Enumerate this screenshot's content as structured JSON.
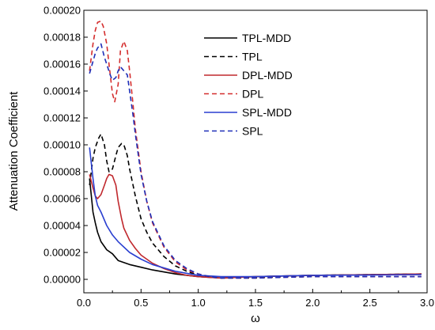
{
  "chart_data": {
    "type": "line",
    "title": "",
    "xlabel": "ω",
    "ylabel": "Attenuation Coefficient",
    "xlim": [
      0.0,
      3.0
    ],
    "ylim": [
      -1e-05,
      0.0002
    ],
    "xticks": [
      "0.0",
      "0.5",
      "1.0",
      "1.5",
      "2.0",
      "2.5",
      "3.0"
    ],
    "yticks": [
      "0.00000",
      "0.00002",
      "0.00004",
      "0.00006",
      "0.00008",
      "0.00010",
      "0.00012",
      "0.00014",
      "0.00016",
      "0.00018",
      "0.00020"
    ],
    "grid": false,
    "legend_position": "top-right",
    "series": [
      {
        "name": "TPL-MDD",
        "color": "#000000",
        "dash": "solid",
        "x": [
          0.05,
          0.08,
          0.1,
          0.12,
          0.15,
          0.2,
          0.25,
          0.3,
          0.4,
          0.5,
          0.6,
          0.8,
          1.0,
          1.2,
          1.5,
          2.0,
          2.5,
          2.95
        ],
        "y": [
          7.5e-05,
          5e-05,
          4.2e-05,
          3.5e-05,
          2.8e-05,
          2.2e-05,
          1.9e-05,
          1.4e-05,
          1.1e-05,
          9e-06,
          7e-06,
          4e-06,
          2e-06,
          1e-06,
          2e-06,
          3e-06,
          3.5e-06,
          4e-06
        ]
      },
      {
        "name": "TPL",
        "color": "#000000",
        "dash": "dashed",
        "x": [
          0.05,
          0.08,
          0.1,
          0.13,
          0.15,
          0.18,
          0.2,
          0.22,
          0.25,
          0.28,
          0.3,
          0.33,
          0.35,
          0.38,
          0.4,
          0.45,
          0.5,
          0.55,
          0.6,
          0.7,
          0.8,
          0.9,
          1.0,
          1.2,
          1.5,
          2.0,
          2.5,
          2.95
        ],
        "y": [
          7e-05,
          9e-05,
          9.8e-05,
          0.000105,
          0.000108,
          0.0001,
          8.8e-05,
          8e-05,
          8.2e-05,
          9.2e-05,
          9.8e-05,
          0.000101,
          0.0001,
          9.2e-05,
          8.2e-05,
          6.2e-05,
          4.5e-05,
          3.5e-05,
          2.7e-05,
          1.7e-05,
          1e-05,
          6e-06,
          3e-06,
          1e-06,
          1e-06,
          3e-06,
          3.5e-06,
          4e-06
        ]
      },
      {
        "name": "DPL-MDD",
        "color": "#c0282d",
        "dash": "solid",
        "x": [
          0.05,
          0.08,
          0.1,
          0.12,
          0.15,
          0.18,
          0.2,
          0.22,
          0.25,
          0.28,
          0.3,
          0.33,
          0.35,
          0.4,
          0.45,
          0.5,
          0.6,
          0.7,
          0.8,
          0.9,
          1.0,
          1.2,
          1.5,
          2.0,
          2.5,
          2.95
        ],
        "y": [
          7.8e-05,
          6.8e-05,
          6.2e-05,
          6e-05,
          6.3e-05,
          7e-05,
          7.5e-05,
          7.8e-05,
          7.7e-05,
          7e-05,
          5.8e-05,
          4.5e-05,
          3.8e-05,
          2.9e-05,
          2.3e-05,
          1.8e-05,
          1.2e-05,
          8e-06,
          5e-06,
          3e-06,
          2e-06,
          1e-06,
          2e-06,
          3e-06,
          3.5e-06,
          4e-06
        ]
      },
      {
        "name": "DPL",
        "color": "#d42d2d",
        "dash": "dashed",
        "x": [
          0.05,
          0.08,
          0.1,
          0.12,
          0.15,
          0.17,
          0.2,
          0.22,
          0.25,
          0.27,
          0.3,
          0.32,
          0.35,
          0.38,
          0.4,
          0.43,
          0.45,
          0.5,
          0.55,
          0.6,
          0.7,
          0.8,
          0.9,
          1.0,
          1.1,
          1.2,
          1.3,
          1.5,
          2.0,
          2.5,
          2.95
        ],
        "y": [
          0.000155,
          0.000175,
          0.000185,
          0.000191,
          0.000192,
          0.000188,
          0.000175,
          0.00016,
          0.000138,
          0.000132,
          0.000145,
          0.00017,
          0.000177,
          0.00017,
          0.000155,
          0.00013,
          0.000112,
          8e-05,
          5.8e-05,
          4.2e-05,
          2.4e-05,
          1.3e-05,
          7e-06,
          4e-06,
          2e-06,
          1e-06,
          1e-06,
          1e-06,
          2e-06,
          2e-06,
          2e-06
        ]
      },
      {
        "name": "SPL-MDD",
        "color": "#2a3fd0",
        "dash": "solid",
        "x": [
          0.05,
          0.08,
          0.1,
          0.12,
          0.15,
          0.2,
          0.25,
          0.3,
          0.4,
          0.5,
          0.6,
          0.8,
          1.0,
          1.2,
          1.5,
          2.0,
          2.5,
          2.95
        ],
        "y": [
          9.8e-05,
          7.5e-05,
          6.2e-05,
          5.5e-05,
          5e-05,
          4e-05,
          3.3e-05,
          2.8e-05,
          2e-05,
          1.5e-05,
          1.1e-05,
          6e-06,
          3e-06,
          2e-06,
          2e-06,
          3e-06,
          3.2e-06,
          3.5e-06
        ]
      },
      {
        "name": "SPL",
        "color": "#1f2fb8",
        "dash": "dashed",
        "x": [
          0.05,
          0.08,
          0.1,
          0.12,
          0.15,
          0.18,
          0.2,
          0.23,
          0.25,
          0.28,
          0.3,
          0.32,
          0.35,
          0.38,
          0.4,
          0.43,
          0.45,
          0.5,
          0.55,
          0.6,
          0.7,
          0.8,
          0.9,
          1.0,
          1.1,
          1.2,
          1.3,
          1.5,
          2.0,
          2.5,
          2.95
        ],
        "y": [
          0.000153,
          0.000162,
          0.000168,
          0.000172,
          0.000175,
          0.000165,
          0.00016,
          0.000152,
          0.000148,
          0.00015,
          0.000155,
          0.000158,
          0.000155,
          0.000152,
          0.00014,
          0.000122,
          0.000108,
          7.8e-05,
          5.8e-05,
          4.3e-05,
          2.5e-05,
          1.4e-05,
          8e-06,
          4e-06,
          2e-06,
          1e-06,
          1e-06,
          1e-06,
          2e-06,
          2e-06,
          2e-06
        ]
      }
    ]
  }
}
